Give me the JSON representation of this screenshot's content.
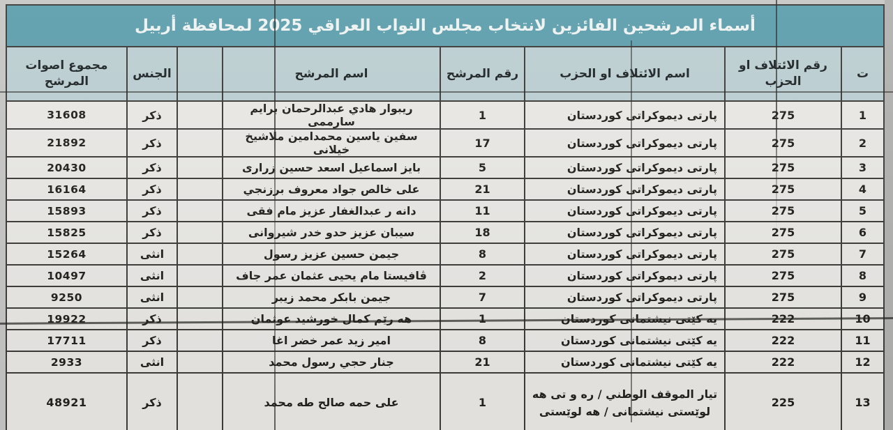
{
  "document": {
    "title": "أسماء المرشحين الفائزين لانتخاب مجلس النواب العراقي 2025 لمحافظة أربيل"
  },
  "table": {
    "column_order": [
      "seq",
      "party_no",
      "party_name",
      "cand_no",
      "cand_name",
      "spare",
      "gender",
      "votes"
    ],
    "headers": {
      "seq": "ت",
      "party_no": "رقم الائتلاف او الحزب",
      "party_name": "اسم الائتلاف او الحزب",
      "cand_no": "رقم المرشح",
      "cand_name": "اسم المرشح",
      "spare": "",
      "gender": "الجنس",
      "votes": "مجموع اصوات المرشح"
    },
    "rows": [
      {
        "seq": "1",
        "party_no": "275",
        "party_name": "پارتی دیموکراتی کوردستان",
        "cand_no": "1",
        "cand_name": "ريبوار هادي عبدالرحمان برايم سارممى",
        "spare": "",
        "gender": "ذكر",
        "votes": "31608"
      },
      {
        "seq": "2",
        "party_no": "275",
        "party_name": "پارتی دیموکراتی کوردستان",
        "cand_no": "17",
        "cand_name": "سفين ياسين محمدامين ملاشيخ خيلانى",
        "spare": "",
        "gender": "ذكر",
        "votes": "21892"
      },
      {
        "seq": "3",
        "party_no": "275",
        "party_name": "پارتی دیموکراتی کوردستان",
        "cand_no": "5",
        "cand_name": "بايز اسماعيل اسعد حسين زرارى",
        "spare": "",
        "gender": "ذكر",
        "votes": "20430"
      },
      {
        "seq": "4",
        "party_no": "275",
        "party_name": "پارتی دیموکراتی کوردستان",
        "cand_no": "21",
        "cand_name": "على خالص جواد معروف برزنجي",
        "spare": "",
        "gender": "ذكر",
        "votes": "16164"
      },
      {
        "seq": "5",
        "party_no": "275",
        "party_name": "پارتی دیموکراتی کوردستان",
        "cand_no": "11",
        "cand_name": "دانه ر عبدالغفار عزيز مام فقى",
        "spare": "",
        "gender": "ذكر",
        "votes": "15893"
      },
      {
        "seq": "6",
        "party_no": "275",
        "party_name": "پارتی دیموکراتی کوردستان",
        "cand_no": "18",
        "cand_name": "سيبان عزيز حدو خدر شيروانى",
        "spare": "",
        "gender": "ذكر",
        "votes": "15825"
      },
      {
        "seq": "7",
        "party_no": "275",
        "party_name": "پارتی دیموکراتی کوردستان",
        "cand_no": "8",
        "cand_name": "جيمن حسين عزيز رسول",
        "spare": "",
        "gender": "انثى",
        "votes": "15264"
      },
      {
        "seq": "8",
        "party_no": "275",
        "party_name": "پارتی دیموکراتی کوردستان",
        "cand_no": "2",
        "cand_name": "ڤافيستا مام يحيى عثمان عمر جاف",
        "spare": "",
        "gender": "انثى",
        "votes": "10497"
      },
      {
        "seq": "9",
        "party_no": "275",
        "party_name": "پارتی دیموکراتی کوردستان",
        "cand_no": "7",
        "cand_name": "جيمن بابكر محمد زيبر",
        "spare": "",
        "gender": "انثى",
        "votes": "9250"
      },
      {
        "seq": "10",
        "party_no": "222",
        "party_name": "يه كێتى نيشتمانى كوردستان",
        "cand_no": "1",
        "cand_name": "هه رێم كمال خورشيد عوثمان",
        "spare": "",
        "gender": "ذكر",
        "votes": "19922"
      },
      {
        "seq": "11",
        "party_no": "222",
        "party_name": "يه كێتى نيشتمانى كوردستان",
        "cand_no": "8",
        "cand_name": "امير زيد عمر خضر اغا",
        "spare": "",
        "gender": "ذكر",
        "votes": "17711"
      },
      {
        "seq": "12",
        "party_no": "222",
        "party_name": "يه كێتى نيشتمانى كوردستان",
        "cand_no": "21",
        "cand_name": "جنار حجي رسول محمد",
        "spare": "",
        "gender": "انثى",
        "votes": "2933"
      },
      {
        "seq": "13",
        "party_no": "225",
        "party_name": "تيار الموقف الوطني / ره و تى هه لوێستى نيشتمانى / هه لوێستى",
        "cand_no": "1",
        "cand_name": "على حمه صالح طه محمد",
        "spare": "",
        "gender": "ذكر",
        "votes": "48921"
      }
    ],
    "has_partial_bottom_row": true
  },
  "colors": {
    "title_bg": "#5f9fad",
    "header_bg": "#bccfd2",
    "row_bg": "#eae9e6",
    "border": "#3d3c3a",
    "page_bg": "#c7c7c5",
    "title_text": "#eef3f2",
    "body_text": "#24221f"
  }
}
